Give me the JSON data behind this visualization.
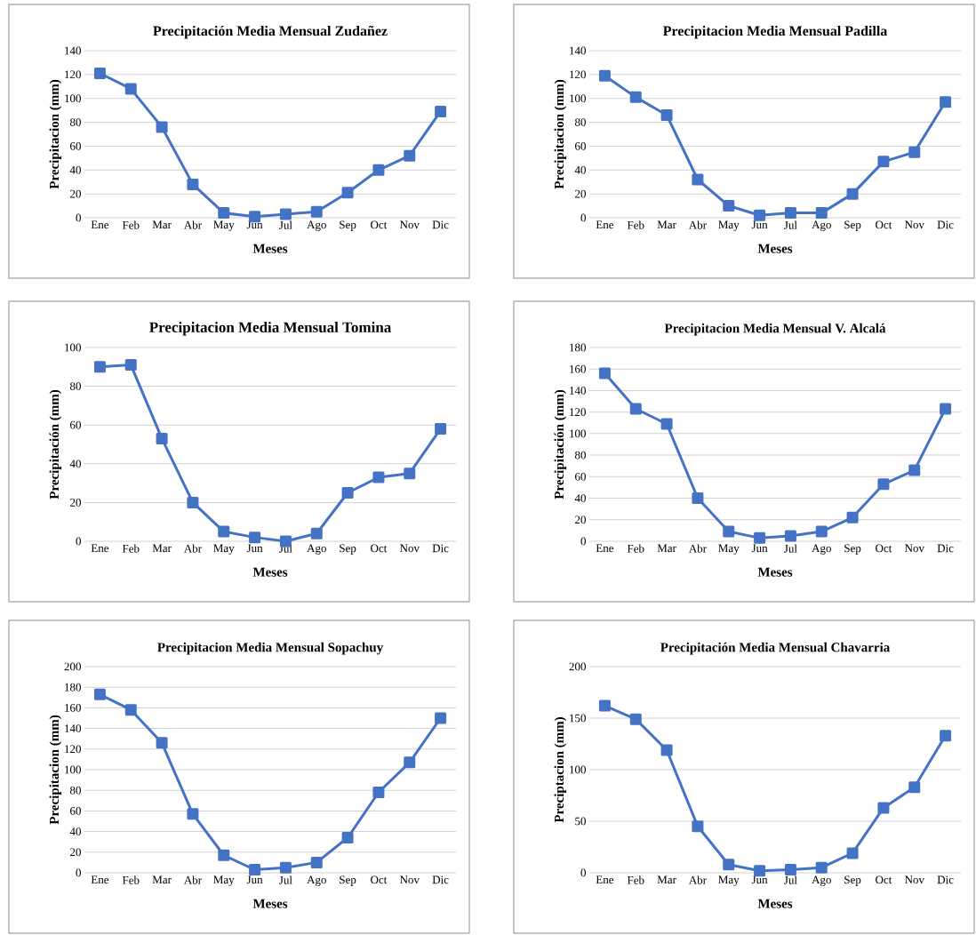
{
  "chart_data": [
    {
      "type": "line",
      "title": "Precipitación Media Mensual Zudañez",
      "xlabel": "Meses",
      "ylabel": "Precipitacion (mm)",
      "categories": [
        "Ene",
        "Feb",
        "Mar",
        "Abr",
        "May",
        "Jun",
        "Jul",
        "Ago",
        "Sep",
        "Oct",
        "Nov",
        "Dic"
      ],
      "values": [
        121,
        108,
        76,
        28,
        4,
        1,
        3,
        5,
        21,
        40,
        52,
        89
      ],
      "color": "#4472c4",
      "ylim": [
        0,
        140
      ],
      "yticks": [
        0,
        20,
        40,
        60,
        80,
        100,
        120,
        140
      ],
      "grid": "y",
      "marker": "square"
    },
    {
      "type": "line",
      "title": "Precipitacion Media Mensual Padilla",
      "xlabel": "Meses",
      "ylabel": "Precipitacion (mm)",
      "categories": [
        "Ene",
        "Feb",
        "Mar",
        "Abr",
        "May",
        "Jun",
        "Jul",
        "Ago",
        "Sep",
        "Oct",
        "Nov",
        "Dic"
      ],
      "values": [
        119,
        101,
        86,
        32,
        10,
        2,
        4,
        4,
        20,
        47,
        55,
        97
      ],
      "color": "#4472c4",
      "ylim": [
        0,
        140
      ],
      "yticks": [
        0,
        20,
        40,
        60,
        80,
        100,
        120,
        140
      ],
      "grid": "y",
      "marker": "square"
    },
    {
      "type": "line",
      "title": "Precipitacion Media Mensual Tomina",
      "xlabel": "Meses",
      "ylabel": "Precipitación (mm)",
      "categories": [
        "Ene",
        "Feb",
        "Mar",
        "Abr",
        "May",
        "Jun",
        "Jul",
        "Ago",
        "Sep",
        "Oct",
        "Nov",
        "Dic"
      ],
      "values": [
        90,
        91,
        53,
        20,
        5,
        2,
        0,
        4,
        25,
        33,
        35,
        58
      ],
      "color": "#4472c4",
      "ylim": [
        0,
        100
      ],
      "yticks": [
        0,
        20,
        40,
        60,
        80,
        100
      ],
      "grid": "y",
      "marker": "square"
    },
    {
      "type": "line",
      "title": "Precipitacion Media Mensual V. Alcalá",
      "xlabel": "Meses",
      "ylabel": "Precipitación (mm)",
      "categories": [
        "Ene",
        "Feb",
        "Mar",
        "Abr",
        "May",
        "Jun",
        "Jul",
        "Ago",
        "Sep",
        "Oct",
        "Nov",
        "Dic"
      ],
      "values": [
        156,
        123,
        109,
        40,
        9,
        3,
        5,
        9,
        22,
        53,
        66,
        123
      ],
      "color": "#4472c4",
      "ylim": [
        0,
        180
      ],
      "yticks": [
        0,
        20,
        40,
        60,
        80,
        100,
        120,
        140,
        160,
        180
      ],
      "grid": "y",
      "marker": "square"
    },
    {
      "type": "line",
      "title": "Precipitacion Media Mensual Sopachuy",
      "xlabel": "Meses",
      "ylabel": "Precipitacion (mm)",
      "categories": [
        "Ene",
        "Feb",
        "Mar",
        "Abr",
        "May",
        "Jun",
        "Jul",
        "Ago",
        "Sep",
        "Oct",
        "Nov",
        "Dic"
      ],
      "values": [
        173,
        158,
        126,
        57,
        17,
        3,
        5,
        10,
        34,
        78,
        107,
        150
      ],
      "color": "#4472c4",
      "ylim": [
        0,
        200
      ],
      "yticks": [
        0,
        20,
        40,
        60,
        80,
        100,
        120,
        140,
        160,
        180,
        200
      ],
      "grid": "y",
      "marker": "square"
    },
    {
      "type": "line",
      "title": "Precipitación Media Mensual Chavarria",
      "xlabel": "Meses",
      "ylabel": "Preciptacion (mm)",
      "categories": [
        "Ene",
        "Feb",
        "Mar",
        "Abr",
        "May",
        "Jun",
        "Jul",
        "Ago",
        "Sep",
        "Oct",
        "Nov",
        "Dic"
      ],
      "values": [
        162,
        149,
        119,
        45,
        8,
        2,
        3,
        5,
        19,
        63,
        83,
        133
      ],
      "color": "#4472c4",
      "ylim": [
        0,
        200
      ],
      "yticks": [
        0,
        50,
        100,
        150,
        200
      ],
      "grid": "y",
      "marker": "square"
    }
  ]
}
